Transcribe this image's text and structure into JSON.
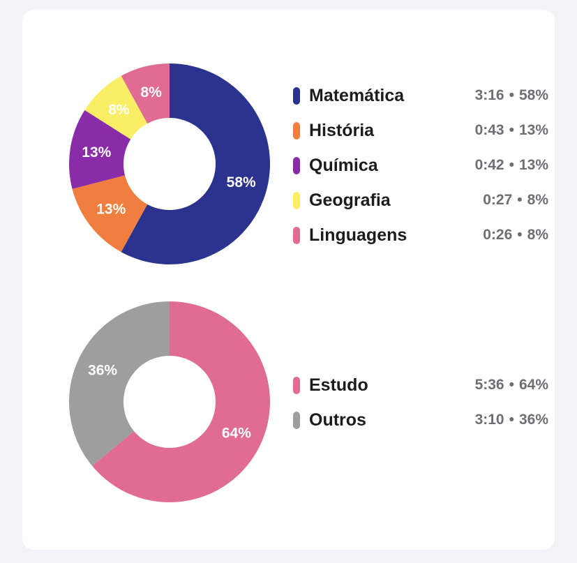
{
  "chart_data": [
    {
      "type": "pie",
      "donut": true,
      "slices": [
        {
          "label": "Matemática",
          "value": 58,
          "time": "3:16",
          "percent_label": "58%",
          "color": "#2b338e"
        },
        {
          "label": "História",
          "value": 13,
          "time": "0:43",
          "percent_label": "13%",
          "color": "#f07e3e"
        },
        {
          "label": "Química",
          "value": 13,
          "time": "0:42",
          "percent_label": "13%",
          "color": "#8a2ca8"
        },
        {
          "label": "Geografia",
          "value": 8,
          "time": "0:27",
          "percent_label": "8%",
          "color": "#fbee67"
        },
        {
          "label": "Linguagens",
          "value": 8,
          "time": "0:26",
          "percent_label": "8%",
          "color": "#e06c94"
        }
      ],
      "legend_position": "right"
    },
    {
      "type": "pie",
      "donut": true,
      "slices": [
        {
          "label": "Estudo",
          "value": 64,
          "time": "5:36",
          "percent_label": "64%",
          "color": "#e06c94"
        },
        {
          "label": "Outros",
          "value": 36,
          "time": "3:10",
          "percent_label": "36%",
          "color": "#9e9e9e"
        }
      ],
      "legend_position": "right"
    }
  ],
  "legend_separator": "•"
}
